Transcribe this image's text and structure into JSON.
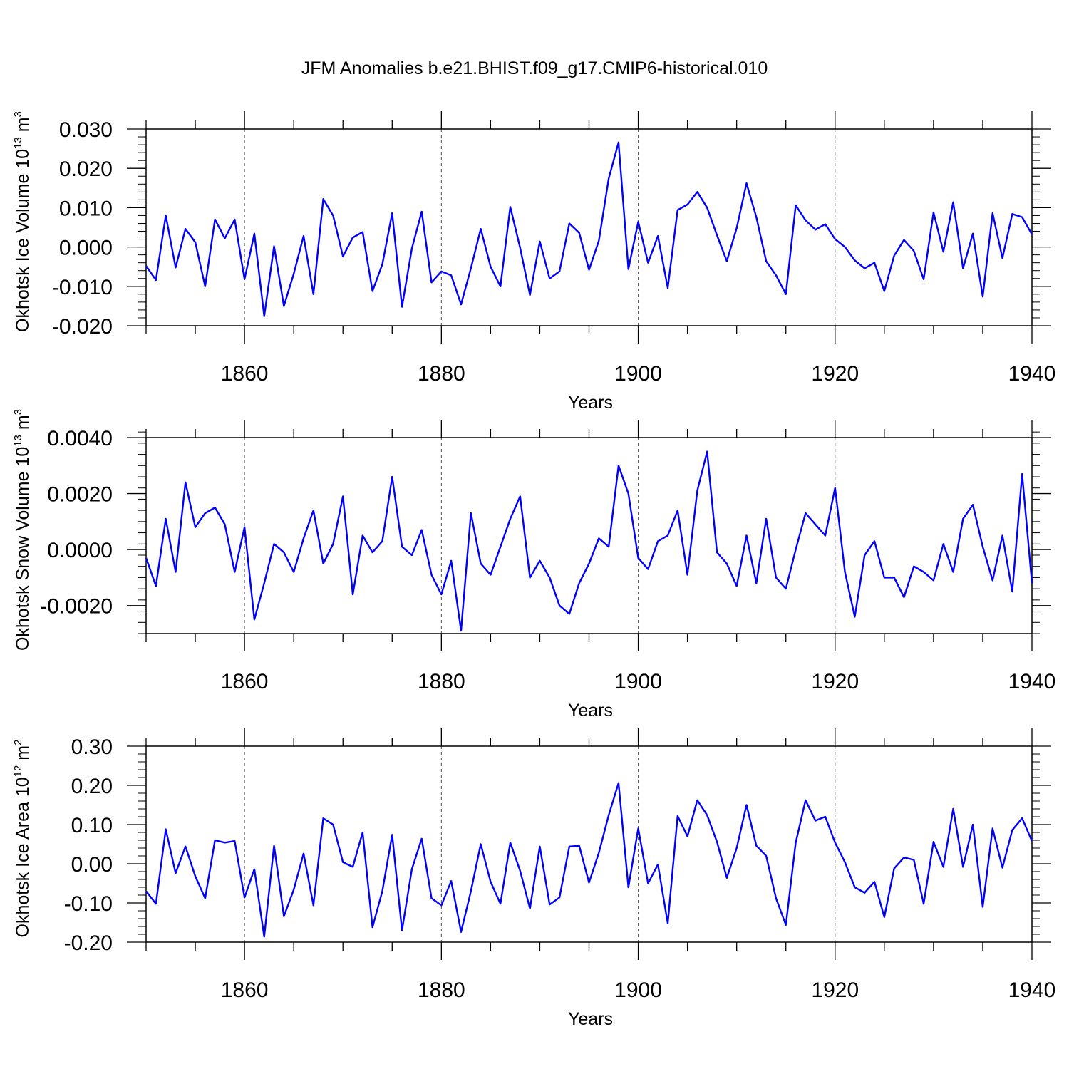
{
  "title": "JFM Anomalies b.e21.BHIST.f09_g17.CMIP6-historical.010",
  "line_color": "#0000ff",
  "chart_data": [
    {
      "type": "line",
      "ylabel_main": "Okhotsk Ice Volume 10",
      "ylabel_exp": "13",
      "ylabel_unit": " m",
      "ylabel_unit_exp": "3",
      "xlabel": "Years",
      "xlim": [
        1850,
        1940
      ],
      "ylim": [
        -0.02,
        0.03
      ],
      "yticks": [
        -0.02,
        -0.01,
        0.0,
        0.01,
        0.02,
        0.03
      ],
      "ytick_labels": [
        "-0.020",
        "-0.010",
        "0.000",
        "0.010",
        "0.020",
        "0.030"
      ],
      "xticks": [
        1860,
        1880,
        1900,
        1920,
        1940
      ],
      "xtick_labels": [
        "1860",
        "1880",
        "1900",
        "1920",
        "1940"
      ],
      "x_start": 1850,
      "values": [
        -0.0048,
        -0.0084,
        0.008,
        -0.0052,
        0.0046,
        0.0012,
        -0.01,
        0.007,
        0.0022,
        0.007,
        -0.0082,
        0.0034,
        -0.0176,
        0.0002,
        -0.015,
        -0.0068,
        0.0028,
        -0.012,
        0.0122,
        0.008,
        -0.0024,
        0.0024,
        0.0038,
        -0.0112,
        -0.0044,
        0.0086,
        -0.0152,
        -0.0004,
        0.009,
        -0.009,
        -0.0062,
        -0.0072,
        -0.0146,
        -0.0054,
        0.0046,
        -0.005,
        -0.01,
        0.0102,
        -0.0002,
        -0.0122,
        0.0014,
        -0.008,
        -0.0062,
        0.006,
        0.0036,
        -0.0058,
        0.0016,
        0.0174,
        0.0266,
        -0.0056,
        0.0064,
        -0.004,
        0.0028,
        -0.0104,
        0.0094,
        0.0108,
        0.014,
        0.01,
        0.003,
        -0.0036,
        0.0048,
        0.0162,
        0.0076,
        -0.0036,
        -0.0072,
        -0.012,
        0.0106,
        0.0068,
        0.0044,
        0.0058,
        0.002,
        0.0,
        -0.0034,
        -0.0054,
        -0.004,
        -0.0112,
        -0.0022,
        0.0018,
        -0.001,
        -0.0082,
        0.0088,
        -0.0012,
        0.0114,
        -0.0054,
        0.0034,
        -0.0126,
        0.0086,
        -0.0028,
        0.0084,
        0.0076,
        0.0032
      ]
    },
    {
      "type": "line",
      "ylabel_main": "Okhotsk Snow Volume 10",
      "ylabel_exp": "13",
      "ylabel_unit": " m",
      "ylabel_unit_exp": "3",
      "xlabel": "Years",
      "xlim": [
        1850,
        1940
      ],
      "ylim": [
        -0.003,
        0.004
      ],
      "yticks": [
        -0.002,
        0.0,
        0.002,
        0.004
      ],
      "ytick_labels": [
        "-0.0020",
        "0.0000",
        "0.0020",
        "0.0040"
      ],
      "xticks": [
        1860,
        1880,
        1900,
        1920,
        1940
      ],
      "xtick_labels": [
        "1860",
        "1880",
        "1900",
        "1920",
        "1940"
      ],
      "x_start": 1850,
      "values": [
        -0.0003,
        -0.0013,
        0.0011,
        -0.0008,
        0.0024,
        0.0008,
        0.0013,
        0.0015,
        0.0009,
        -0.0008,
        0.0008,
        -0.0025,
        -0.0012,
        0.0002,
        -0.0001,
        -0.0008,
        0.0004,
        0.0014,
        -0.0005,
        0.0002,
        0.0019,
        -0.0016,
        0.0005,
        -0.0001,
        0.0003,
        0.0026,
        0.0001,
        -0.0002,
        0.0007,
        -0.0009,
        -0.0016,
        -0.0004,
        -0.0029,
        0.0013,
        -0.0005,
        -0.0009,
        0.0001,
        0.0011,
        0.0019,
        -0.001,
        -0.0004,
        -0.001,
        -0.002,
        -0.0023,
        -0.0012,
        -0.0005,
        0.0004,
        0.0001,
        0.003,
        0.002,
        -0.0003,
        -0.0007,
        0.0003,
        0.0005,
        0.0014,
        -0.0009,
        0.0021,
        0.0035,
        -0.0001,
        -0.0005,
        -0.0013,
        0.0005,
        -0.0012,
        0.0011,
        -0.001,
        -0.0014,
        0.0,
        0.0013,
        0.0009,
        0.0005,
        0.0022,
        -0.0008,
        -0.0024,
        -0.0002,
        0.0003,
        -0.001,
        -0.001,
        -0.0017,
        -0.0006,
        -0.0008,
        -0.0011,
        0.0002,
        -0.0008,
        0.0011,
        0.0016,
        0.0001,
        -0.0011,
        0.0005,
        -0.0015,
        0.0027,
        -0.0012
      ]
    },
    {
      "type": "line",
      "ylabel_main": "Okhotsk Ice Area 10",
      "ylabel_exp": "12",
      "ylabel_unit": " m",
      "ylabel_unit_exp": "2",
      "xlabel": "Years",
      "xlim": [
        1850,
        1940
      ],
      "ylim": [
        -0.2,
        0.3
      ],
      "yticks": [
        -0.2,
        -0.1,
        0.0,
        0.1,
        0.2,
        0.3
      ],
      "ytick_labels": [
        "-0.20",
        "-0.10",
        "0.00",
        "0.10",
        "0.20",
        "0.30"
      ],
      "xticks": [
        1860,
        1880,
        1900,
        1920,
        1940
      ],
      "xtick_labels": [
        "1860",
        "1880",
        "1900",
        "1920",
        "1940"
      ],
      "x_start": 1850,
      "values": [
        -0.07,
        -0.102,
        0.088,
        -0.024,
        0.044,
        -0.032,
        -0.088,
        0.06,
        0.054,
        0.058,
        -0.086,
        -0.014,
        -0.186,
        0.046,
        -0.134,
        -0.066,
        0.026,
        -0.106,
        0.116,
        0.1,
        0.004,
        -0.008,
        0.08,
        -0.162,
        -0.07,
        0.074,
        -0.17,
        -0.014,
        0.064,
        -0.088,
        -0.106,
        -0.044,
        -0.174,
        -0.07,
        0.05,
        -0.046,
        -0.102,
        0.054,
        -0.018,
        -0.114,
        0.044,
        -0.104,
        -0.086,
        0.044,
        0.046,
        -0.048,
        0.028,
        0.124,
        0.206,
        -0.06,
        0.09,
        -0.05,
        -0.002,
        -0.152,
        0.122,
        0.07,
        0.162,
        0.124,
        0.056,
        -0.036,
        0.04,
        0.15,
        0.046,
        0.02,
        -0.088,
        -0.156,
        0.054,
        0.162,
        0.11,
        0.12,
        0.054,
        0.004,
        -0.06,
        -0.074,
        -0.046,
        -0.136,
        -0.012,
        0.016,
        0.01,
        -0.102,
        0.056,
        -0.008,
        0.14,
        -0.008,
        0.1,
        -0.11,
        0.09,
        -0.01,
        0.086,
        0.116,
        0.058
      ]
    }
  ]
}
